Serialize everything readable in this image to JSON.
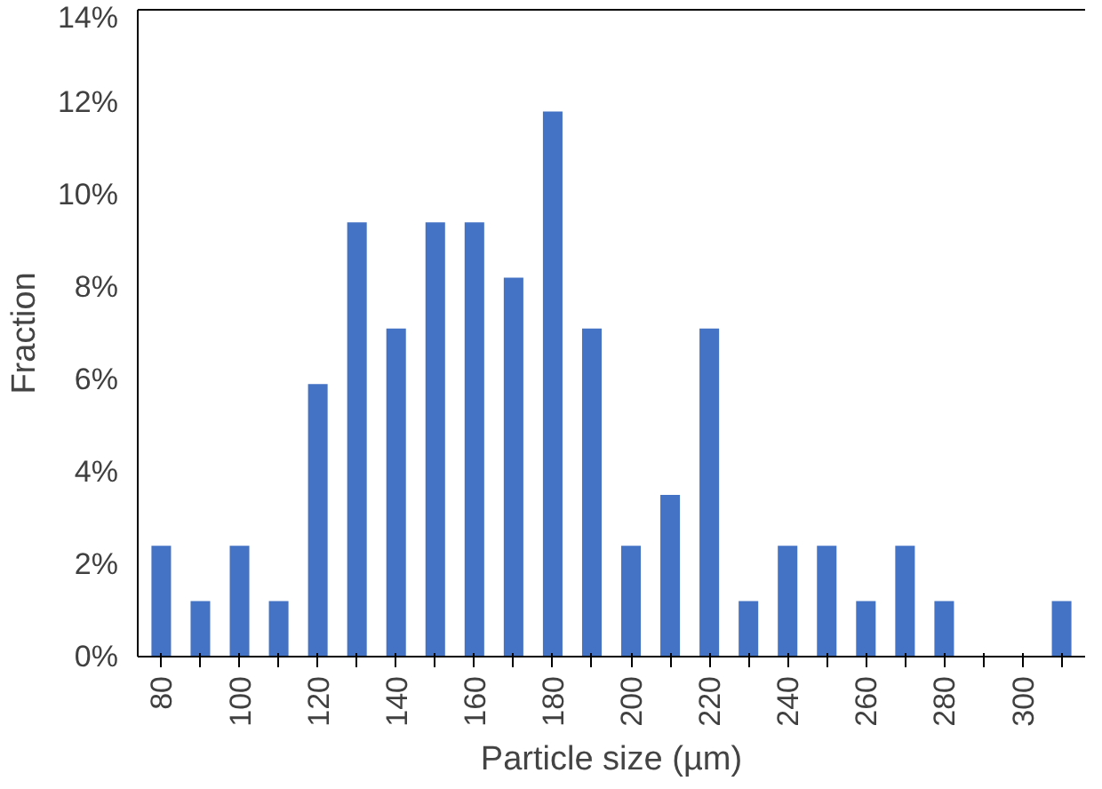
{
  "chart_data": {
    "type": "bar",
    "xlabel": "Particle size (µm)",
    "ylabel": "Fraction",
    "categories": [
      "80",
      null,
      "100",
      null,
      "120",
      null,
      "140",
      null,
      "160",
      null,
      "180",
      null,
      "200",
      null,
      "220",
      null,
      "240",
      null,
      "260",
      null,
      "280",
      null,
      "300",
      null
    ],
    "values": [
      2.4,
      1.2,
      2.4,
      1.2,
      5.9,
      9.4,
      7.1,
      9.4,
      9.4,
      8.2,
      11.8,
      7.1,
      2.4,
      3.5,
      7.1,
      1.2,
      2.4,
      2.4,
      1.2,
      2.4,
      1.2,
      0,
      0,
      1.2
    ],
    "color": "#4472c4",
    "ylim": [
      0,
      14
    ],
    "yticks": [
      {
        "value": 0,
        "label": "0%"
      },
      {
        "value": 2,
        "label": "2%"
      },
      {
        "value": 4,
        "label": "4%"
      },
      {
        "value": 6,
        "label": "6%"
      },
      {
        "value": 8,
        "label": "8%"
      },
      {
        "value": 10,
        "label": "10%"
      },
      {
        "value": 12,
        "label": "12%"
      },
      {
        "value": 14,
        "label": "14%"
      }
    ],
    "grid": false
  }
}
